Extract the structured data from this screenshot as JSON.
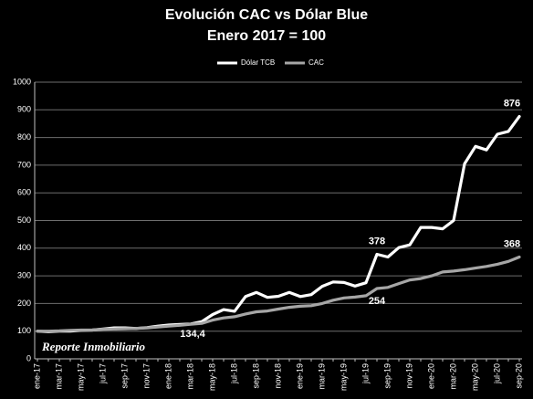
{
  "chart_data": {
    "type": "line",
    "title": "Evolución CAC vs Dólar Blue",
    "subtitle": "Enero 2017 = 100",
    "watermark": "Reporte Inmobiliario",
    "categories": [
      "ene-17",
      null,
      "mar-17",
      null,
      "may-17",
      null,
      "jul-17",
      null,
      "sep-17",
      null,
      "nov-17",
      null,
      "ene-18",
      null,
      "mar-18",
      null,
      "may-18",
      null,
      "jul-18",
      null,
      "sep-18",
      null,
      "nov-18",
      null,
      "ene-19",
      null,
      "mar-19",
      null,
      "may-19",
      null,
      "jul-19",
      null,
      "sep-19",
      null,
      "nov-19",
      null,
      "ene-20",
      null,
      "mar-20",
      null,
      "may-20",
      null,
      "jul-20",
      null,
      "sep-20"
    ],
    "series": [
      {
        "name": "Dólar TCB",
        "color": "#ffffff",
        "values": [
          100,
          98,
          100,
          100,
          103,
          104,
          108,
          112,
          112,
          110,
          113,
          118,
          122,
          124,
          126,
          134.4,
          160,
          178,
          172,
          225,
          240,
          222,
          226,
          240,
          225,
          232,
          262,
          278,
          276,
          263,
          275,
          378,
          368,
          402,
          412,
          475,
          475,
          470,
          500,
          705,
          768,
          755,
          812,
          822,
          876
        ],
        "value_labels": [
          null,
          null,
          null,
          null,
          null,
          null,
          null,
          null,
          null,
          null,
          null,
          null,
          null,
          null,
          null,
          "134,4",
          null,
          null,
          null,
          null,
          null,
          null,
          null,
          null,
          null,
          null,
          null,
          null,
          null,
          null,
          null,
          "378",
          null,
          null,
          null,
          null,
          null,
          null,
          null,
          null,
          null,
          null,
          null,
          null,
          "876"
        ]
      },
      {
        "name": "CAC",
        "color": "#a6a6a6",
        "values": [
          100,
          100,
          101,
          103,
          104,
          104,
          107,
          108,
          109,
          110,
          112,
          115,
          118,
          121,
          125,
          128,
          140,
          148,
          152,
          162,
          170,
          173,
          180,
          186,
          190,
          192,
          200,
          212,
          220,
          223,
          228,
          254,
          258,
          272,
          285,
          290,
          300,
          314,
          317,
          322,
          328,
          334,
          342,
          352,
          368
        ],
        "value_labels": [
          null,
          null,
          null,
          null,
          null,
          null,
          null,
          null,
          null,
          null,
          null,
          null,
          null,
          null,
          null,
          null,
          null,
          null,
          null,
          null,
          null,
          null,
          null,
          null,
          null,
          null,
          null,
          null,
          null,
          null,
          null,
          "254",
          null,
          null,
          null,
          null,
          null,
          null,
          null,
          null,
          null,
          null,
          null,
          null,
          "368"
        ]
      }
    ],
    "ylim": [
      0,
      1000
    ],
    "yticks": [
      0,
      100,
      200,
      300,
      400,
      500,
      600,
      700,
      800,
      900,
      1000
    ],
    "grid": true,
    "legend": "top"
  }
}
